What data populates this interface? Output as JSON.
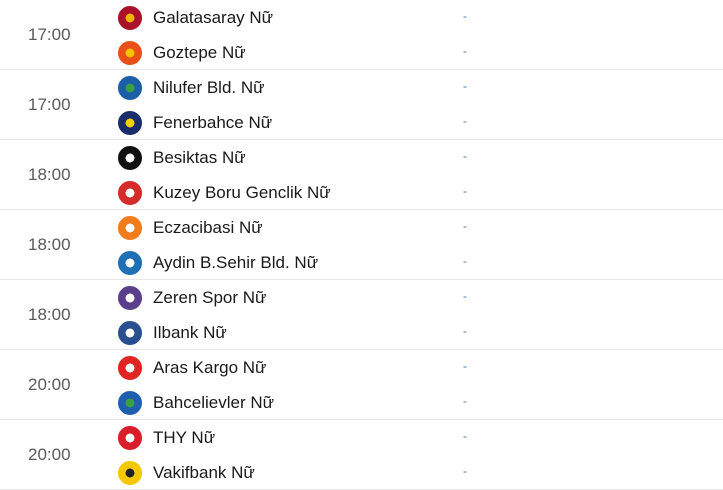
{
  "matches": [
    {
      "time": "17:00",
      "home": {
        "name": "Galatasaray Nữ",
        "logo": "galatasaray-logo",
        "color": "#a9122a",
        "accent": "#f2b400"
      },
      "away": {
        "name": "Goztepe Nữ",
        "logo": "goztepe-logo",
        "color": "#e8501a",
        "accent": "#f5c400"
      },
      "home_score": "-",
      "away_score": "-"
    },
    {
      "time": "17:00",
      "home": {
        "name": "Nilufer Bld. Nữ",
        "logo": "nilufer-logo",
        "color": "#1c5fa8",
        "accent": "#3aa045"
      },
      "away": {
        "name": "Fenerbahce Nữ",
        "logo": "fenerbahce-logo",
        "color": "#1b2c6b",
        "accent": "#f4d000"
      },
      "home_score": "-",
      "away_score": "-"
    },
    {
      "time": "18:00",
      "home": {
        "name": "Besiktas Nữ",
        "logo": "besiktas-logo",
        "color": "#111111",
        "accent": "#ffffff"
      },
      "away": {
        "name": "Kuzey Boru Genclik Nữ",
        "logo": "kuzey-boru-logo",
        "color": "#d42b2b",
        "accent": "#ffffff"
      },
      "home_score": "-",
      "away_score": "-"
    },
    {
      "time": "18:00",
      "home": {
        "name": "Eczacibasi Nữ",
        "logo": "eczacibasi-logo",
        "color": "#f07c1c",
        "accent": "#ffffff"
      },
      "away": {
        "name": "Aydin B.Sehir Bld. Nữ",
        "logo": "aydin-logo",
        "color": "#1f6fb5",
        "accent": "#ffffff"
      },
      "home_score": "-",
      "away_score": "-"
    },
    {
      "time": "18:00",
      "home": {
        "name": "Zeren Spor Nữ",
        "logo": "zeren-spor-logo",
        "color": "#5a3f8a",
        "accent": "#ffffff"
      },
      "away": {
        "name": "Ilbank Nữ",
        "logo": "ilbank-logo",
        "color": "#2a4f8f",
        "accent": "#ffffff"
      },
      "home_score": "-",
      "away_score": "-"
    },
    {
      "time": "20:00",
      "home": {
        "name": "Aras Kargo Nữ",
        "logo": "aras-kargo-logo",
        "color": "#e02424",
        "accent": "#ffffff"
      },
      "away": {
        "name": "Bahcelievler Nữ",
        "logo": "bahcelievler-logo",
        "color": "#1f5fae",
        "accent": "#3aa045"
      },
      "home_score": "-",
      "away_score": "-"
    },
    {
      "time": "20:00",
      "home": {
        "name": "THY Nữ",
        "logo": "thy-logo",
        "color": "#d81e2a",
        "accent": "#ffffff"
      },
      "away": {
        "name": "Vakifbank Nữ",
        "logo": "vakifbank-logo",
        "color": "#f4c800",
        "accent": "#222222"
      },
      "home_score": "-",
      "away_score": "-"
    }
  ]
}
